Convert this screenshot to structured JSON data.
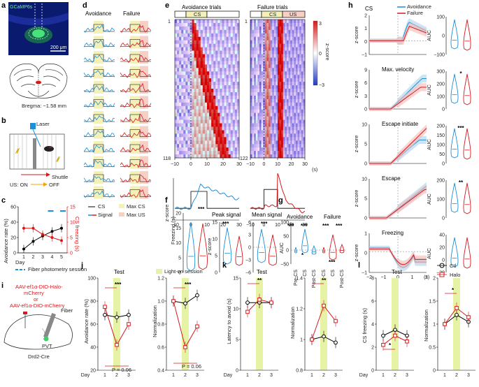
{
  "panels": {
    "a": {
      "letter": "a",
      "stain": "GCaMP6s",
      "scale": "200 μm",
      "bregma": "Bregma: −1.58 mm"
    },
    "b": {
      "letter": "b",
      "laser": "Laser",
      "shuttle": "Shuttle",
      "us_on": "US: ON",
      "us_off": "OFF"
    },
    "c": {
      "letter": "c",
      "ylabel_left": "Avoidance rate (%)",
      "ylabel_right": "CS freezing (s)",
      "xlabel": "Day",
      "xticks": [
        "1",
        "2",
        "3",
        "4",
        "5"
      ],
      "yticks_left": [
        "0",
        "20",
        "40",
        "60"
      ],
      "yticks_right": [
        "0",
        "5",
        "10",
        "15"
      ],
      "legend": "Fiber photometry session"
    },
    "d": {
      "letter": "d",
      "col1": "Avoidance",
      "col2": "Failure",
      "leg_cs": "CS",
      "leg_signal": "Signal",
      "leg_maxcs": "Max CS",
      "leg_maxus": "Max US"
    },
    "e": {
      "letter": "e",
      "title1": "Avoidance trials",
      "title2": "Failure trials",
      "cs": "CS",
      "us": "US",
      "n1_top": "1",
      "n1_bottom": "118",
      "n2_top": "1",
      "n2_bottom": "122",
      "cbar_label": "z-score",
      "cbar_ticks": [
        "3",
        "0",
        "−3"
      ],
      "xticks": [
        "−10",
        "0",
        "10",
        "20",
        "30"
      ],
      "xunit": "(s)",
      "trace_ylabel": "z-score"
    },
    "f": {
      "letter": "f",
      "freeze_ylabel": "Freezing (s)",
      "freeze_ticks": [
        "0",
        "5",
        "10",
        "15",
        "20"
      ],
      "peak_title": "Peak signal",
      "mean_title": "Mean signal",
      "zlabel": "z-score",
      "peak_ticks": [
        "0",
        "5",
        "10",
        "15"
      ],
      "mean_ticks": [
        "−6",
        "−3",
        "0",
        "3",
        "6"
      ],
      "stars": "***"
    },
    "g": {
      "letter": "g",
      "col1": "Avoidance",
      "col2": "Failure",
      "ylabel": "AUC",
      "yticks": [
        "−50",
        "0",
        "50",
        "100"
      ],
      "xticks": [
        "Pre-CS",
        "CS",
        "Post-CS"
      ],
      "star3": "***",
      "star1": "*"
    },
    "h": {
      "letter": "h",
      "leg_cs": "CS",
      "leg_avoid": "Avoidance",
      "leg_fail": "Failure",
      "rows": [
        {
          "title": "",
          "yticks": [
            "−1",
            "0",
            "1",
            "2"
          ],
          "auc_ticks": [
            "−100",
            "0",
            "100"
          ],
          "stars": ""
        },
        {
          "title": "Max. velocity",
          "yticks": [
            "0",
            "3",
            "6",
            "9"
          ],
          "auc_ticks": [
            "0",
            "100",
            "200",
            "300"
          ],
          "stars": "*"
        },
        {
          "title": "Escape initiate",
          "yticks": [
            "0",
            "5",
            "10"
          ],
          "auc_ticks": [
            "0",
            "50",
            "100",
            "150",
            "200"
          ],
          "stars": "***"
        },
        {
          "title": "Escape",
          "yticks": [
            "0",
            "5",
            "10"
          ],
          "auc_ticks": [
            "0",
            "100",
            "200"
          ],
          "stars": "**"
        },
        {
          "title": "Freezing",
          "yticks": [
            "−1",
            "0",
            "1"
          ],
          "auc_ticks": [
            "−20",
            "0",
            "20",
            "40"
          ],
          "stars": ""
        }
      ],
      "ylabel": "z-score",
      "auc_label": "AUC",
      "xticks": [
        "−2",
        "−1",
        "0",
        "1",
        "2"
      ],
      "xunit": "(s)"
    },
    "i": {
      "letter": "i",
      "virus1": "AAV-ef1α-DIO-Halo-",
      "virus2": "mCherry",
      "virus3": "or",
      "virus4": "AAV-ef1α-DIO-mCherry",
      "fiber": "Fiber",
      "pvt": "PVT",
      "mouse": "Drd2-Cre"
    },
    "j": {
      "letter": "j",
      "test": "Test",
      "lighton": "Light-on session",
      "ylabel1": "Avoidance rate (%)",
      "ylabel2": "Normalization",
      "yticks1": [
        "20",
        "40",
        "60",
        "80",
        "100"
      ],
      "yticks2": [
        "0.4",
        "0.6",
        "0.8",
        "1.0",
        "1.2"
      ],
      "p": "P = 0.06",
      "stars": "***"
    },
    "k": {
      "letter": "k",
      "test": "Test",
      "ylabel1": "Latency to avoid (s)",
      "ylabel2": "Normalization",
      "yticks1": [
        "0",
        "5",
        "10",
        "15"
      ],
      "yticks2": [
        "0.8",
        "1",
        "1.2",
        "1.4"
      ],
      "stars": "**"
    },
    "l": {
      "letter": "l",
      "test": "Test",
      "ylabel1": "CS freezing (s)",
      "ylabel2": "Normalization",
      "yticks1": [
        "0",
        "2",
        "4",
        "6",
        "8"
      ],
      "yticks2": [
        "0",
        "0.5",
        "1",
        "1.5",
        "2"
      ],
      "stars": "*",
      "legend_ctl": "Ctl",
      "legend_halo": "Halo"
    },
    "days": {
      "d": "Day",
      "t": [
        "1",
        "2",
        "3"
      ]
    }
  },
  "chart_data": [
    {
      "type": "line",
      "panel": "c",
      "title": "",
      "categories": [
        1,
        2,
        3,
        4,
        5
      ],
      "xlabel": "Day",
      "series": [
        {
          "name": "Avoidance rate (%)",
          "axis": "left",
          "values": [
            5,
            15,
            22,
            28,
            32
          ],
          "color": "#000000"
        },
        {
          "name": "CS freezing (s)",
          "axis": "right",
          "values": [
            8,
            8,
            6,
            5,
            4
          ],
          "color": "#d7191c"
        }
      ],
      "ylim_left": [
        0,
        60
      ],
      "ylim_right": [
        0,
        15
      ]
    },
    {
      "type": "line",
      "panel": "j-left",
      "title": "Test",
      "categories": [
        "1",
        "2",
        "3"
      ],
      "xlabel": "Day",
      "ylabel": "Avoidance rate (%)",
      "series": [
        {
          "name": "Ctl",
          "values": [
            68,
            66,
            68
          ]
        },
        {
          "name": "Halo",
          "values": [
            75,
            42,
            60
          ]
        }
      ],
      "ylim": [
        20,
        100
      ]
    },
    {
      "type": "line",
      "panel": "j-right",
      "title": "Light-on session",
      "categories": [
        "1",
        "2",
        "3"
      ],
      "ylabel": "Normalization",
      "series": [
        {
          "name": "Ctl",
          "values": [
            1.0,
            0.98,
            1.05
          ]
        },
        {
          "name": "Halo",
          "values": [
            1.0,
            0.6,
            0.78
          ]
        }
      ],
      "ylim": [
        0.4,
        1.2
      ]
    },
    {
      "type": "line",
      "panel": "k-left",
      "title": "Test",
      "categories": [
        "1",
        "2",
        "3"
      ],
      "ylabel": "Latency to avoid (s)",
      "series": [
        {
          "name": "Ctl",
          "values": [
            11,
            11,
            11
          ]
        },
        {
          "name": "Halo",
          "values": [
            9.5,
            11.5,
            11
          ]
        }
      ],
      "ylim": [
        0,
        15
      ]
    },
    {
      "type": "line",
      "panel": "k-right",
      "categories": [
        "1",
        "2",
        "3"
      ],
      "ylabel": "Normalization",
      "series": [
        {
          "name": "Ctl",
          "values": [
            1.0,
            1.02,
            0.98
          ]
        },
        {
          "name": "Halo",
          "values": [
            1.0,
            1.22,
            1.12
          ]
        }
      ],
      "ylim": [
        0.8,
        1.4
      ]
    },
    {
      "type": "line",
      "panel": "l-left",
      "title": "Test",
      "categories": [
        "1",
        "2",
        "3"
      ],
      "ylabel": "CS freezing (s)",
      "series": [
        {
          "name": "Ctl",
          "values": [
            3,
            3.5,
            3
          ]
        },
        {
          "name": "Halo",
          "values": [
            2.2,
            3,
            2.5
          ]
        }
      ],
      "ylim": [
        0,
        8
      ]
    },
    {
      "type": "line",
      "panel": "l-right",
      "categories": [
        "1",
        "2",
        "3"
      ],
      "ylabel": "Normalization",
      "series": [
        {
          "name": "Ctl",
          "values": [
            1.0,
            1.2,
            1.05
          ]
        },
        {
          "name": "Halo",
          "values": [
            1.0,
            1.35,
            1.15
          ]
        }
      ],
      "ylim": [
        0,
        2
      ]
    }
  ]
}
